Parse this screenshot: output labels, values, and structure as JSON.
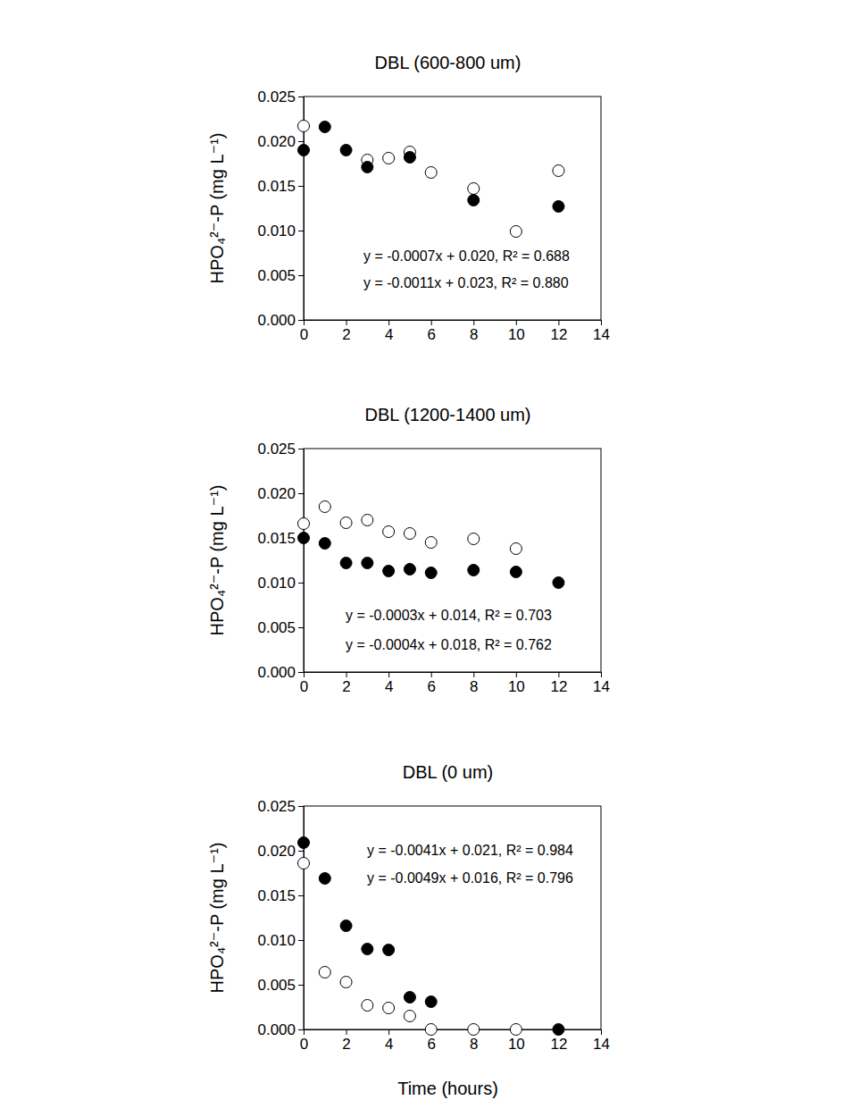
{
  "chart_data": [
    {
      "type": "scatter",
      "title": "DBL (600-800 um)",
      "y_label": "HPO₄²⁻-P (mg L⁻¹)",
      "xlim": [
        0,
        14
      ],
      "xticks": [
        0,
        2,
        4,
        6,
        8,
        10,
        12,
        14
      ],
      "ylim": [
        0,
        0.025
      ],
      "yticks": [
        {
          "value": 0,
          "label": "0.000"
        },
        {
          "value": 0.005,
          "label": "0.005"
        },
        {
          "value": 0.01,
          "label": "0.010"
        },
        {
          "value": 0.015,
          "label": "0.015"
        },
        {
          "value": 0.02,
          "label": "0.020"
        },
        {
          "value": 0.025,
          "label": "0.025"
        }
      ],
      "annotations": [
        "y = -0.0007x + 0.020, R² = 0.688",
        "y = -0.0011x + 0.023, R² = 0.880"
      ],
      "series": [
        {
          "color": "#000000",
          "marker": "open-circle",
          "x": [
            0,
            3,
            4,
            5,
            6,
            8,
            10,
            12
          ],
          "values": [
            0.0217,
            0.0179,
            0.0181,
            0.0188,
            0.0165,
            0.0147,
            0.0099,
            0.0167
          ]
        },
        {
          "color": "#000000",
          "marker": "circle",
          "x": [
            0,
            1,
            2,
            3,
            5,
            8,
            12
          ],
          "values": [
            0.019,
            0.0216,
            0.019,
            0.0171,
            0.0182,
            0.0134,
            0.0127
          ]
        }
      ]
    },
    {
      "type": "scatter",
      "title": "DBL (1200-1400 um)",
      "y_label": "HPO₄²⁻-P (mg L⁻¹)",
      "xlim": [
        0,
        14
      ],
      "xticks": [
        0,
        2,
        4,
        6,
        8,
        10,
        12,
        14
      ],
      "ylim": [
        0,
        0.025
      ],
      "yticks": [
        {
          "value": 0,
          "label": "0.000"
        },
        {
          "value": 0.005,
          "label": "0.005"
        },
        {
          "value": 0.01,
          "label": "0.010"
        },
        {
          "value": 0.015,
          "label": "0.015"
        },
        {
          "value": 0.02,
          "label": "0.020"
        },
        {
          "value": 0.025,
          "label": "0.025"
        }
      ],
      "annotations": [
        "y = -0.0003x + 0.014, R² = 0.703",
        "y = -0.0004x + 0.018, R² = 0.762"
      ],
      "series": [
        {
          "color": "#000000",
          "marker": "open-circle",
          "x": [
            0,
            1,
            2,
            3,
            4,
            5,
            6,
            8,
            10
          ],
          "values": [
            0.0166,
            0.0185,
            0.0167,
            0.017,
            0.0157,
            0.0155,
            0.0145,
            0.0149,
            0.0138
          ]
        },
        {
          "color": "#000000",
          "marker": "circle",
          "x": [
            0,
            1,
            2,
            3,
            4,
            5,
            6,
            8,
            10,
            12
          ],
          "values": [
            0.015,
            0.0144,
            0.0122,
            0.0122,
            0.0113,
            0.0115,
            0.0111,
            0.0114,
            0.0112,
            0.01
          ]
        }
      ]
    },
    {
      "type": "scatter",
      "title": "DBL (0 um)",
      "y_label": "HPO₄²⁻-P (mg L⁻¹)",
      "x_label": "Time (hours)",
      "xlim": [
        0,
        14
      ],
      "xticks": [
        0,
        2,
        4,
        6,
        8,
        10,
        12,
        14
      ],
      "ylim": [
        0,
        0.025
      ],
      "yticks": [
        {
          "value": 0,
          "label": "0.000"
        },
        {
          "value": 0.005,
          "label": "0.005"
        },
        {
          "value": 0.01,
          "label": "0.010"
        },
        {
          "value": 0.015,
          "label": "0.015"
        },
        {
          "value": 0.02,
          "label": "0.020"
        },
        {
          "value": 0.025,
          "label": "0.025"
        }
      ],
      "annotations": [
        "y = -0.0041x + 0.021, R² = 0.984",
        "y = -0.0049x + 0.016, R² = 0.796"
      ],
      "series": [
        {
          "color": "#000000",
          "marker": "open-circle",
          "x": [
            0,
            1,
            2,
            3,
            4,
            5,
            6,
            8,
            10
          ],
          "values": [
            0.0186,
            0.0064,
            0.0053,
            0.0027,
            0.0024,
            0.0015,
            0,
            0,
            0
          ]
        },
        {
          "color": "#000000",
          "marker": "circle",
          "x": [
            0,
            1,
            2,
            3,
            4,
            5,
            6,
            12
          ],
          "values": [
            0.0209,
            0.0169,
            0.0116,
            0.009,
            0.0089,
            0.0036,
            0.0031,
            0
          ]
        }
      ]
    }
  ]
}
